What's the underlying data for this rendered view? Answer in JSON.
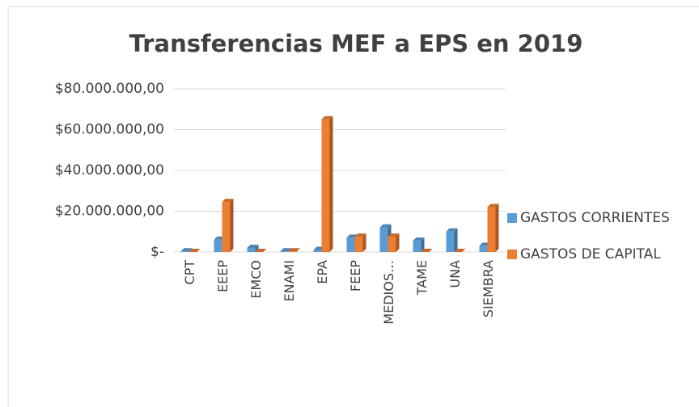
{
  "chart_data": {
    "type": "bar3d",
    "title": "Transferencias MEF a EPS en 2019",
    "categories": [
      "CPT",
      "EEEP",
      "EMCO",
      "ENAMI",
      "EPA",
      "FEEP",
      "MEDIOS…",
      "TAME",
      "UNA",
      "SIEMBRA"
    ],
    "series": [
      {
        "name": "GASTOS CORRIENTES",
        "color": "#5b9bd5",
        "values": [
          300000,
          6000000,
          2000000,
          300000,
          1000000,
          7000000,
          12000000,
          5500000,
          10000000,
          3000000
        ]
      },
      {
        "name": "GASTOS DE CAPITAL",
        "color": "#ed7d31",
        "values": [
          0,
          24500000,
          0,
          300000,
          65000000,
          7500000,
          7500000,
          0,
          0,
          22000000
        ]
      }
    ],
    "ylim": [
      0,
      80000000
    ],
    "yticks": [
      {
        "value": 0,
        "label": "$-"
      },
      {
        "value": 20000000,
        "label": "$20.000.000,00"
      },
      {
        "value": 40000000,
        "label": "$40.000.000,00"
      },
      {
        "value": 60000000,
        "label": "$60.000.000,00"
      },
      {
        "value": 80000000,
        "label": "$80.000.000,00"
      }
    ],
    "grid": true,
    "legend": "right"
  }
}
